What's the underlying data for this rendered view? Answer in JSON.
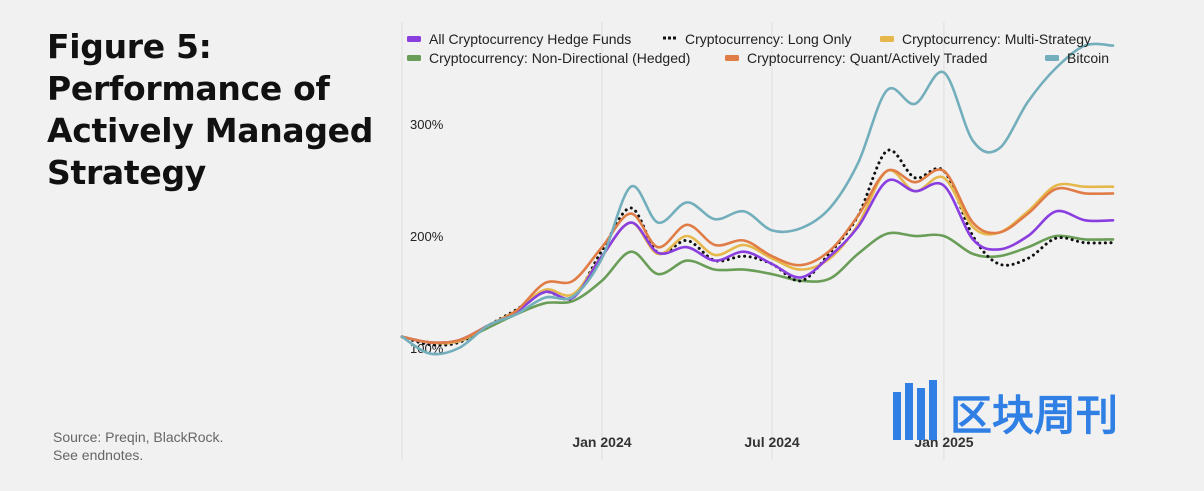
{
  "figure": {
    "title_lines": [
      "Figure 5:",
      "Performance of",
      "Actively Managed",
      "Strategy"
    ],
    "source_lines": [
      "Source: Preqin, BlackRock.",
      "See endnotes."
    ]
  },
  "watermark": {
    "text": "区块周刊"
  },
  "chart_data": {
    "type": "line",
    "title": "Figure 5: Performance of Actively Managed Strategy",
    "x": [
      "2023-06-01",
      "2023-07-01",
      "2023-08-01",
      "2023-09-01",
      "2023-10-01",
      "2023-11-01",
      "2023-12-01",
      "2024-01-01",
      "2024-02-01",
      "2024-03-01",
      "2024-04-01",
      "2024-05-01",
      "2024-06-01",
      "2024-07-01",
      "2024-08-01",
      "2024-09-01",
      "2024-10-01",
      "2024-11-01",
      "2024-12-01",
      "2025-01-01",
      "2025-02-01",
      "2025-03-01",
      "2025-04-01",
      "2025-05-01",
      "2025-06-01",
      "2025-07-01"
    ],
    "x_ticks": [
      "Jan 2024",
      "Jul 2024",
      "Jan 2025"
    ],
    "x_range": [
      "2023-06-01",
      "2025-08-01"
    ],
    "y_ticks": [
      "100%",
      "200%",
      "300%"
    ],
    "y_tick_values": [
      100,
      200,
      300
    ],
    "ylim": [
      0,
      400
    ],
    "grid": "vertical",
    "legend_position": "top",
    "series": [
      {
        "name": "All Cryptocurrency Hedge Funds",
        "color": "#8a3ee0",
        "style": "solid",
        "values": [
          110,
          105,
          107,
          120,
          132,
          150,
          145,
          182,
          212,
          185,
          190,
          178,
          186,
          175,
          163,
          182,
          208,
          249,
          240,
          245,
          197,
          188,
          200,
          222,
          214,
          214
        ]
      },
      {
        "name": "Cryptocurrency: Long Only",
        "color": "#111111",
        "style": "dotted",
        "values": [
          110,
          103,
          105,
          120,
          134,
          150,
          145,
          187,
          225,
          185,
          196,
          178,
          182,
          175,
          160,
          185,
          218,
          276,
          252,
          258,
          200,
          175,
          180,
          198,
          194,
          194
        ]
      },
      {
        "name": "Cryptocurrency: Multi-Strategy",
        "color": "#e6b84c",
        "style": "solid",
        "values": [
          110,
          105,
          106,
          120,
          133,
          152,
          148,
          182,
          212,
          184,
          200,
          183,
          192,
          180,
          170,
          180,
          210,
          258,
          240,
          252,
          208,
          203,
          222,
          245,
          244,
          244
        ]
      },
      {
        "name": "Cryptocurrency: Non-Directional (Hedged)",
        "color": "#6a9e58",
        "style": "solid",
        "values": [
          110,
          105,
          106,
          118,
          130,
          140,
          142,
          160,
          186,
          166,
          178,
          170,
          170,
          166,
          160,
          162,
          184,
          202,
          200,
          200,
          184,
          182,
          190,
          200,
          197,
          197
        ]
      },
      {
        "name": "Cryptocurrency: Quant/Actively Traded",
        "color": "#e07d47",
        "style": "solid",
        "values": [
          110,
          105,
          107,
          120,
          133,
          158,
          160,
          190,
          220,
          190,
          210,
          192,
          196,
          182,
          174,
          187,
          218,
          258,
          248,
          258,
          212,
          203,
          220,
          242,
          238,
          238
        ]
      },
      {
        "name": "Bitcoin",
        "color": "#72aebb",
        "style": "solid",
        "values": [
          110,
          95,
          100,
          120,
          130,
          145,
          146,
          180,
          244,
          212,
          230,
          215,
          222,
          205,
          207,
          225,
          265,
          330,
          318,
          346,
          285,
          278,
          320,
          350,
          370,
          370
        ]
      }
    ]
  }
}
